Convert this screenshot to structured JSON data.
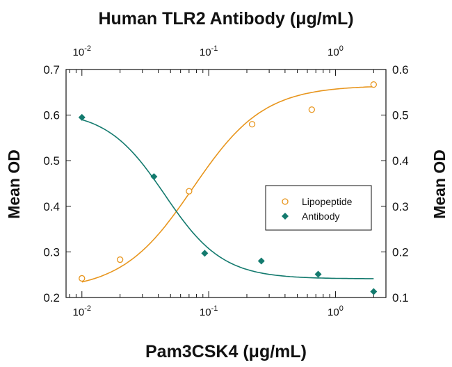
{
  "chart_data": {
    "type": "scatter",
    "title": "Human TLR2 Antibody (μg/mL)",
    "xlabel": "Pam3CSK4 (μg/mL)",
    "ylabel_left": "Mean OD",
    "ylabel_right": "Mean OD",
    "x_scale": "log",
    "xlim": [
      0.0075,
      2.5
    ],
    "x_ticks": [
      {
        "base": "10",
        "exp": "-2",
        "value": 0.01
      },
      {
        "base": "10",
        "exp": "-1",
        "value": 0.1
      },
      {
        "base": "10",
        "exp": "0",
        "value": 1
      }
    ],
    "top_ticks": [
      {
        "base": "10",
        "exp": "-2",
        "value": 0.01
      },
      {
        "base": "10",
        "exp": "-1",
        "value": 0.1
      },
      {
        "base": "10",
        "exp": "0",
        "value": 1
      }
    ],
    "ylim_left": [
      0.2,
      0.7
    ],
    "y_ticks_left": [
      "0.2",
      "0.3",
      "0.4",
      "0.5",
      "0.6",
      "0.7"
    ],
    "ylim_right": [
      0.1,
      0.6
    ],
    "y_ticks_right": [
      "0.1",
      "0.2",
      "0.3",
      "0.4",
      "0.5",
      "0.6"
    ],
    "grid": false,
    "legend_position": "center-right",
    "series": [
      {
        "name": "Lipopeptide",
        "color": "#e8961e",
        "marker": "open-circle",
        "axis": "bottom-left",
        "x": [
          0.01,
          0.02,
          0.07,
          0.22,
          0.65,
          2.0
        ],
        "y": [
          0.242,
          0.283,
          0.433,
          0.58,
          0.612,
          0.667
        ]
      },
      {
        "name": "Antibody",
        "color": "#137a6e",
        "marker": "filled-diamond",
        "axis": "top-right",
        "x": [
          0.01,
          0.037,
          0.093,
          0.26,
          0.73,
          2.0
        ],
        "y": [
          0.495,
          0.365,
          0.197,
          0.18,
          0.151,
          0.113
        ]
      }
    ]
  }
}
